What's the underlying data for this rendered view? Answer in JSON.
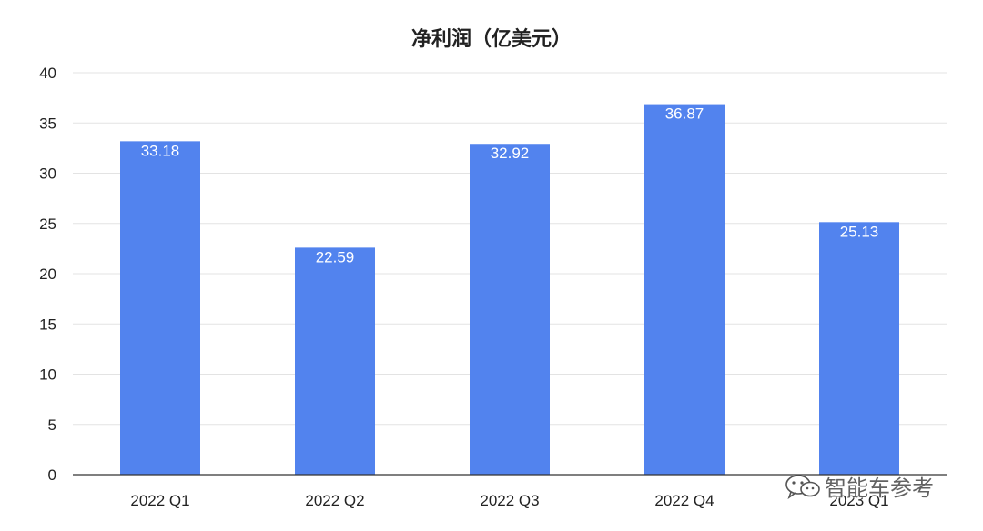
{
  "colors": {
    "bar": "#5283ee",
    "grid": "#e3e3e3",
    "axis": "#333333",
    "value_label": "#ffffff"
  },
  "chart_data": {
    "type": "bar",
    "title": "净利润（亿美元）",
    "categories": [
      "2022 Q1",
      "2022 Q2",
      "2022 Q3",
      "2022 Q4",
      "2023 Q1"
    ],
    "values": [
      33.18,
      22.59,
      32.92,
      36.87,
      25.13
    ],
    "value_labels": [
      "33.18",
      "22.59",
      "32.92",
      "36.87",
      "25.13"
    ],
    "ylim": [
      0,
      40
    ],
    "yticks": [
      "0",
      "5",
      "10",
      "15",
      "20",
      "25",
      "30",
      "35",
      "40"
    ],
    "grid": true,
    "legend": "none",
    "xlabel": "",
    "ylabel": ""
  },
  "watermark": {
    "icon": "wechat-icon",
    "text": "智能车参考"
  }
}
